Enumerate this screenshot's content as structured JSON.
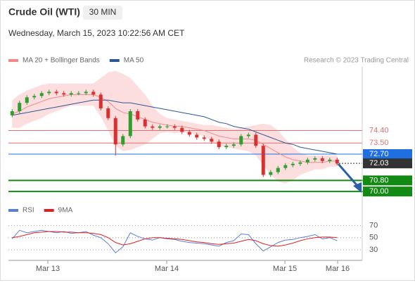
{
  "chart_data": [
    {
      "type": "candlestick",
      "title": "Crude Oil (WTI)",
      "subtitle": "30 MIN",
      "date": "Wednesday, March 15, 2023 10:22:56 AM CET",
      "credit": "Research © 2023 Trading Central",
      "x": [
        0,
        1,
        2,
        3,
        4,
        5,
        6,
        7,
        8,
        9,
        10,
        11,
        12,
        13,
        14,
        15,
        16,
        17,
        18,
        19,
        20,
        21,
        22,
        23,
        24,
        25,
        26,
        27,
        28,
        29,
        30,
        31,
        32,
        33,
        34,
        35,
        36,
        37,
        38,
        39,
        40,
        41,
        42,
        43,
        44
      ],
      "open": [
        75.5,
        75.8,
        76.4,
        76.8,
        76.9,
        77.1,
        77.2,
        77.1,
        77.0,
        77.1,
        77.1,
        77.2,
        77.0,
        76.0,
        75.3,
        73.4,
        74.0,
        75.8,
        75.2,
        74.7,
        74.6,
        74.7,
        74.7,
        74.6,
        74.3,
        74.1,
        73.9,
        73.8,
        73.6,
        73.2,
        73.3,
        73.4,
        74.0,
        74.1,
        73.3,
        71.2,
        71.4,
        71.7,
        71.9,
        72.0,
        72.1,
        72.3,
        72.4,
        72.2,
        72.3
      ],
      "high": [
        75.95,
        76.55,
        76.95,
        77.05,
        77.25,
        77.35,
        77.35,
        77.25,
        77.25,
        77.25,
        77.35,
        77.35,
        77.15,
        76.15,
        75.45,
        74.15,
        75.95,
        75.95,
        75.35,
        74.85,
        74.85,
        74.85,
        74.85,
        74.75,
        74.45,
        74.25,
        74.05,
        73.95,
        73.75,
        73.45,
        73.55,
        74.15,
        74.25,
        74.25,
        73.45,
        71.55,
        71.85,
        72.05,
        72.15,
        72.25,
        72.45,
        72.55,
        72.55,
        72.45,
        72.45
      ],
      "low": [
        75.35,
        75.65,
        76.25,
        76.65,
        76.75,
        76.95,
        76.95,
        76.85,
        76.85,
        76.95,
        76.95,
        76.85,
        75.85,
        75.15,
        72.6,
        73.25,
        73.85,
        75.05,
        74.55,
        74.45,
        74.45,
        74.55,
        74.45,
        74.15,
        73.95,
        73.75,
        73.65,
        73.45,
        73.05,
        73.05,
        73.15,
        73.25,
        73.85,
        73.15,
        71.05,
        71.05,
        71.25,
        71.55,
        71.75,
        71.85,
        71.95,
        72.15,
        72.05,
        72.05,
        71.88
      ],
      "close": [
        75.8,
        76.4,
        76.8,
        76.9,
        77.1,
        77.2,
        77.1,
        77.0,
        77.1,
        77.1,
        77.2,
        77.0,
        76.0,
        75.3,
        73.4,
        74.0,
        75.8,
        75.2,
        74.7,
        74.6,
        74.7,
        74.7,
        74.6,
        74.3,
        74.1,
        73.9,
        73.8,
        73.6,
        73.2,
        73.3,
        73.4,
        74.0,
        74.1,
        73.3,
        71.2,
        71.4,
        71.7,
        71.9,
        72.0,
        72.1,
        72.3,
        72.4,
        72.2,
        72.3,
        72.03
      ],
      "up_color": "#2e9e2e",
      "down_color": "#d93030",
      "series": [
        {
          "name": "MA 20 + Bollinger Bands",
          "color": "#f08a8a",
          "band_color": "#fcd6d6",
          "values": [
            75.6,
            75.8,
            76.1,
            76.3,
            76.5,
            76.7,
            76.8,
            76.9,
            77.0,
            77.0,
            77.0,
            77.0,
            76.8,
            76.5,
            76.0,
            75.7,
            75.6,
            75.4,
            75.2,
            75.0,
            74.9,
            74.8,
            74.7,
            74.7,
            74.6,
            74.5,
            74.4,
            74.2,
            74.0,
            73.9,
            73.8,
            73.8,
            73.8,
            73.7,
            73.4,
            73.1,
            72.8,
            72.5,
            72.3,
            72.2,
            72.1,
            72.1,
            72.1,
            72.2,
            72.2
          ],
          "upper": [
            76.6,
            77.0,
            77.3,
            77.5,
            77.7,
            77.8,
            77.8,
            77.8,
            77.8,
            77.8,
            77.8,
            77.8,
            78.2,
            78.6,
            78.7,
            78.5,
            78.2,
            77.6,
            77.0,
            76.2,
            75.6,
            75.3,
            75.2,
            75.1,
            75.0,
            74.9,
            74.8,
            74.8,
            74.7,
            74.6,
            74.5,
            74.6,
            74.7,
            74.8,
            74.9,
            74.8,
            74.4,
            73.8,
            73.2,
            72.8,
            72.6,
            72.6,
            72.6,
            72.6,
            72.6
          ],
          "lower": [
            74.6,
            74.6,
            74.9,
            75.1,
            75.3,
            75.6,
            75.8,
            76.0,
            76.2,
            76.2,
            76.2,
            76.2,
            75.4,
            74.4,
            73.3,
            72.9,
            73.0,
            73.2,
            73.4,
            73.8,
            74.2,
            74.3,
            74.2,
            74.3,
            74.2,
            74.1,
            74.0,
            73.6,
            73.3,
            73.2,
            73.1,
            73.0,
            72.9,
            72.6,
            71.9,
            71.2,
            70.7,
            70.6,
            70.8,
            71.2,
            71.4,
            71.6,
            71.6,
            71.8,
            71.8
          ]
        },
        {
          "name": "MA 50",
          "color": "#2b5797",
          "values": [
            75.5,
            75.6,
            75.7,
            75.8,
            75.9,
            76.0,
            76.1,
            76.2,
            76.3,
            76.4,
            76.5,
            76.6,
            76.6,
            76.6,
            76.5,
            76.4,
            76.4,
            76.3,
            76.2,
            76.1,
            76.0,
            75.9,
            75.8,
            75.7,
            75.6,
            75.5,
            75.4,
            75.2,
            75.0,
            74.9,
            74.7,
            74.6,
            74.5,
            74.3,
            74.1,
            73.9,
            73.7,
            73.5,
            73.4,
            73.2,
            73.1,
            73.0,
            72.9,
            72.8,
            72.7
          ]
        }
      ],
      "levels": [
        {
          "value": 74.4,
          "label": "74.40",
          "color": "#e07070",
          "filled": false
        },
        {
          "value": 73.5,
          "label": "73.50",
          "color": "#e07070",
          "filled": false
        },
        {
          "value": 72.7,
          "label": "72.70",
          "color": "#1f6fe0",
          "filled": true
        },
        {
          "value": 72.03,
          "label": "72.03",
          "color": "#333333",
          "filled": true
        },
        {
          "value": 70.8,
          "label": "70.80",
          "color": "#138a13",
          "filled": true
        },
        {
          "value": 70.0,
          "label": "70.00",
          "color": "#138a13",
          "filled": true
        }
      ],
      "xlim": [
        -0.5,
        47.4
      ],
      "ylim": [
        69.6,
        79.0
      ]
    },
    {
      "type": "line",
      "x": [
        0,
        1,
        2,
        3,
        4,
        5,
        6,
        7,
        8,
        9,
        10,
        11,
        12,
        13,
        14,
        15,
        16,
        17,
        18,
        19,
        20,
        21,
        22,
        23,
        24,
        25,
        26,
        27,
        28,
        29,
        30,
        31,
        32,
        33,
        34,
        35,
        36,
        37,
        38,
        39,
        40,
        41,
        42,
        43,
        44
      ],
      "series": [
        {
          "name": "RSI",
          "color": "#5b7fd6",
          "values": [
            48,
            62,
            58,
            60,
            62,
            60,
            58,
            60,
            57,
            58,
            60,
            54,
            50,
            40,
            25,
            35,
            58,
            52,
            48,
            46,
            50,
            48,
            47,
            44,
            42,
            41,
            40,
            38,
            36,
            42,
            45,
            56,
            55,
            40,
            28,
            35,
            42,
            46,
            47,
            50,
            52,
            55,
            48,
            50,
            45
          ]
        },
        {
          "name": "9MA",
          "color": "#e02020",
          "values": [
            50,
            52,
            55,
            58,
            59,
            60,
            60,
            59,
            59,
            58,
            58,
            57,
            55,
            50,
            42,
            38,
            40,
            44,
            48,
            50,
            50,
            49,
            48,
            47,
            45,
            43,
            42,
            40,
            39,
            40,
            41,
            44,
            47,
            45,
            40,
            37,
            36,
            38,
            41,
            45,
            48,
            50,
            51,
            51,
            50
          ]
        }
      ],
      "xlim": [
        -0.5,
        47.4
      ],
      "ylim": [
        15,
        82
      ],
      "yticks": [
        70,
        50,
        30
      ],
      "xticks": [
        {
          "value": 4.83,
          "label": "Mar 13"
        },
        {
          "value": 20.93,
          "label": "Mar 14"
        },
        {
          "value": 36.93,
          "label": "Mar 15"
        },
        {
          "value": 44.07,
          "label": "Mar 16"
        }
      ]
    }
  ]
}
